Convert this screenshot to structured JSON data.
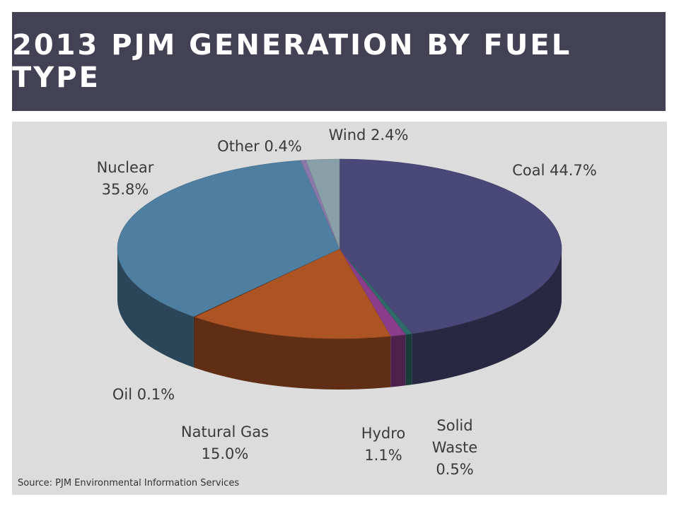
{
  "header": {
    "title": "2013 PJM GENERATION BY FUEL TYPE"
  },
  "source": "Source: PJM Environmental Information Services",
  "colors": {
    "header_bg": "#424254",
    "panel_bg": "#dcdcdc"
  },
  "chart_data": {
    "type": "pie",
    "title": "2013 PJM GENERATION BY FUEL TYPE",
    "style": "3d",
    "slices": [
      {
        "key": "coal",
        "label": "Coal",
        "value": 44.7,
        "display": "44.7%",
        "color": "#4a4878"
      },
      {
        "key": "solid_waste",
        "label": "Solid Waste",
        "value": 0.5,
        "display": "0.5%",
        "color": "#2e6b6a"
      },
      {
        "key": "hydro",
        "label": "Hydro",
        "value": 1.1,
        "display": "1.1%",
        "color": "#8a3d8a"
      },
      {
        "key": "natural_gas",
        "label": "Natural Gas",
        "value": 15.0,
        "display": "15.0%",
        "color": "#ac5424"
      },
      {
        "key": "oil",
        "label": "Oil",
        "value": 0.1,
        "display": "0.1%",
        "color": "#6a3a20"
      },
      {
        "key": "nuclear",
        "label": "Nuclear",
        "value": 35.8,
        "display": "35.8%",
        "color": "#4f7fa0"
      },
      {
        "key": "other",
        "label": "Other",
        "value": 0.4,
        "display": "0.4%",
        "color": "#8a78aa"
      },
      {
        "key": "wind",
        "label": "Wind",
        "value": 2.4,
        "display": "2.4%",
        "color": "#8aa0a8"
      }
    ]
  }
}
